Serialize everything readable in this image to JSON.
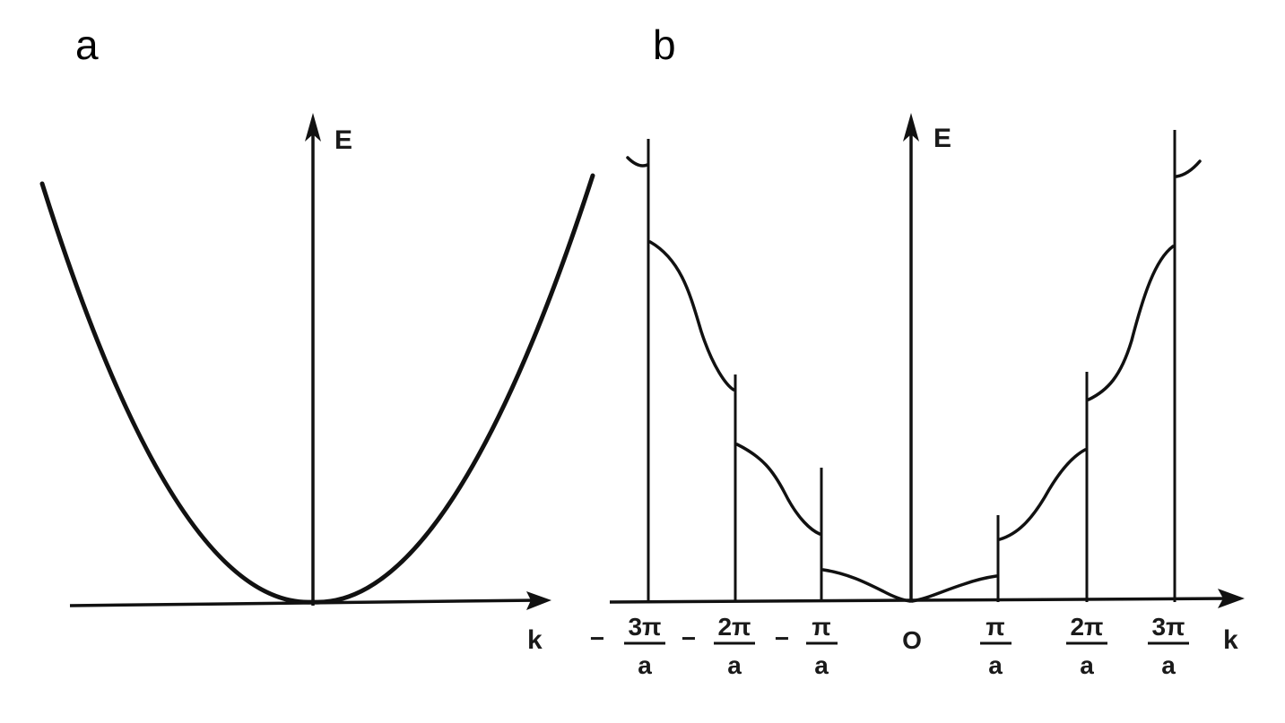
{
  "panels": {
    "a": {
      "label": "a",
      "y_axis_label": "E",
      "x_axis_label": "k"
    },
    "b": {
      "label": "b",
      "y_axis_label": "E",
      "x_axis_label": "k",
      "ticks": [
        {
          "sign": "−",
          "numerator": "3π",
          "denominator": "a"
        },
        {
          "sign": "−",
          "numerator": "2π",
          "denominator": "a"
        },
        {
          "sign": "−",
          "numerator": "π",
          "denominator": "a"
        },
        {
          "sign": "",
          "numerator": "O",
          "denominator": ""
        },
        {
          "sign": "",
          "numerator": "π",
          "denominator": "a"
        },
        {
          "sign": "",
          "numerator": "2π",
          "denominator": "a"
        },
        {
          "sign": "",
          "numerator": "3π",
          "denominator": "a"
        }
      ]
    }
  }
}
